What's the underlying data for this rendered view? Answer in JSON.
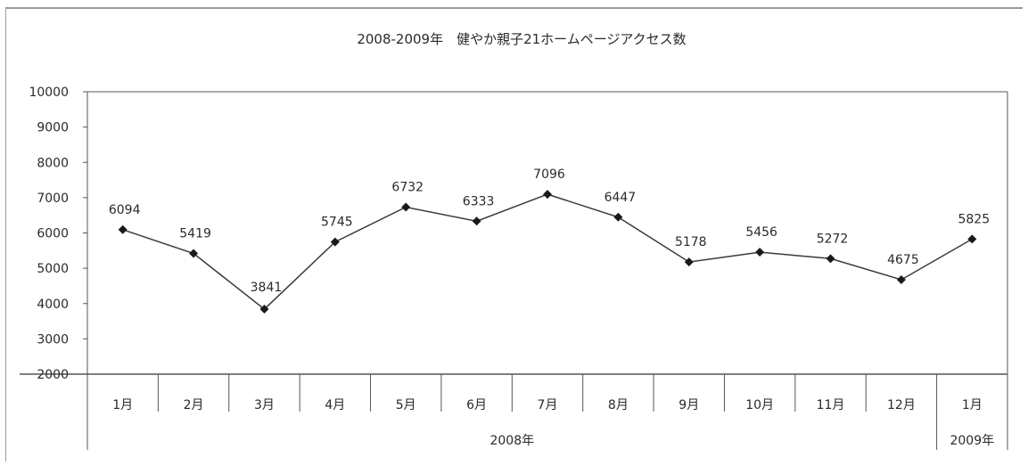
{
  "chart_data": {
    "type": "line",
    "title": "2008-2009年　健やか親子21ホームページアクセス数",
    "categories": [
      "1月",
      "2月",
      "3月",
      "4月",
      "5月",
      "6月",
      "7月",
      "8月",
      "9月",
      "10月",
      "11月",
      "12月",
      "1月"
    ],
    "year_groups": [
      {
        "label": "2008年",
        "span": 12
      },
      {
        "label": "2009年",
        "span": 1
      }
    ],
    "series": [
      {
        "values": [
          6094,
          5419,
          3841,
          5745,
          6732,
          6333,
          7096,
          6447,
          5178,
          5456,
          5272,
          4675,
          5825
        ]
      }
    ],
    "ylim": [
      2000,
      10000
    ],
    "yticks": [
      2000,
      3000,
      4000,
      5000,
      6000,
      7000,
      8000,
      9000,
      10000
    ],
    "data_labels": [
      "6094",
      "5419",
      "3841",
      "5745",
      "6732",
      "6333",
      "7096",
      "6447",
      "5178",
      "5456",
      "5272",
      "4675",
      "5825"
    ],
    "grid": false,
    "legend": "none",
    "colors": {
      "line": "#3a3a3a",
      "marker": "#1a1a1a",
      "axis": "#555555"
    }
  }
}
